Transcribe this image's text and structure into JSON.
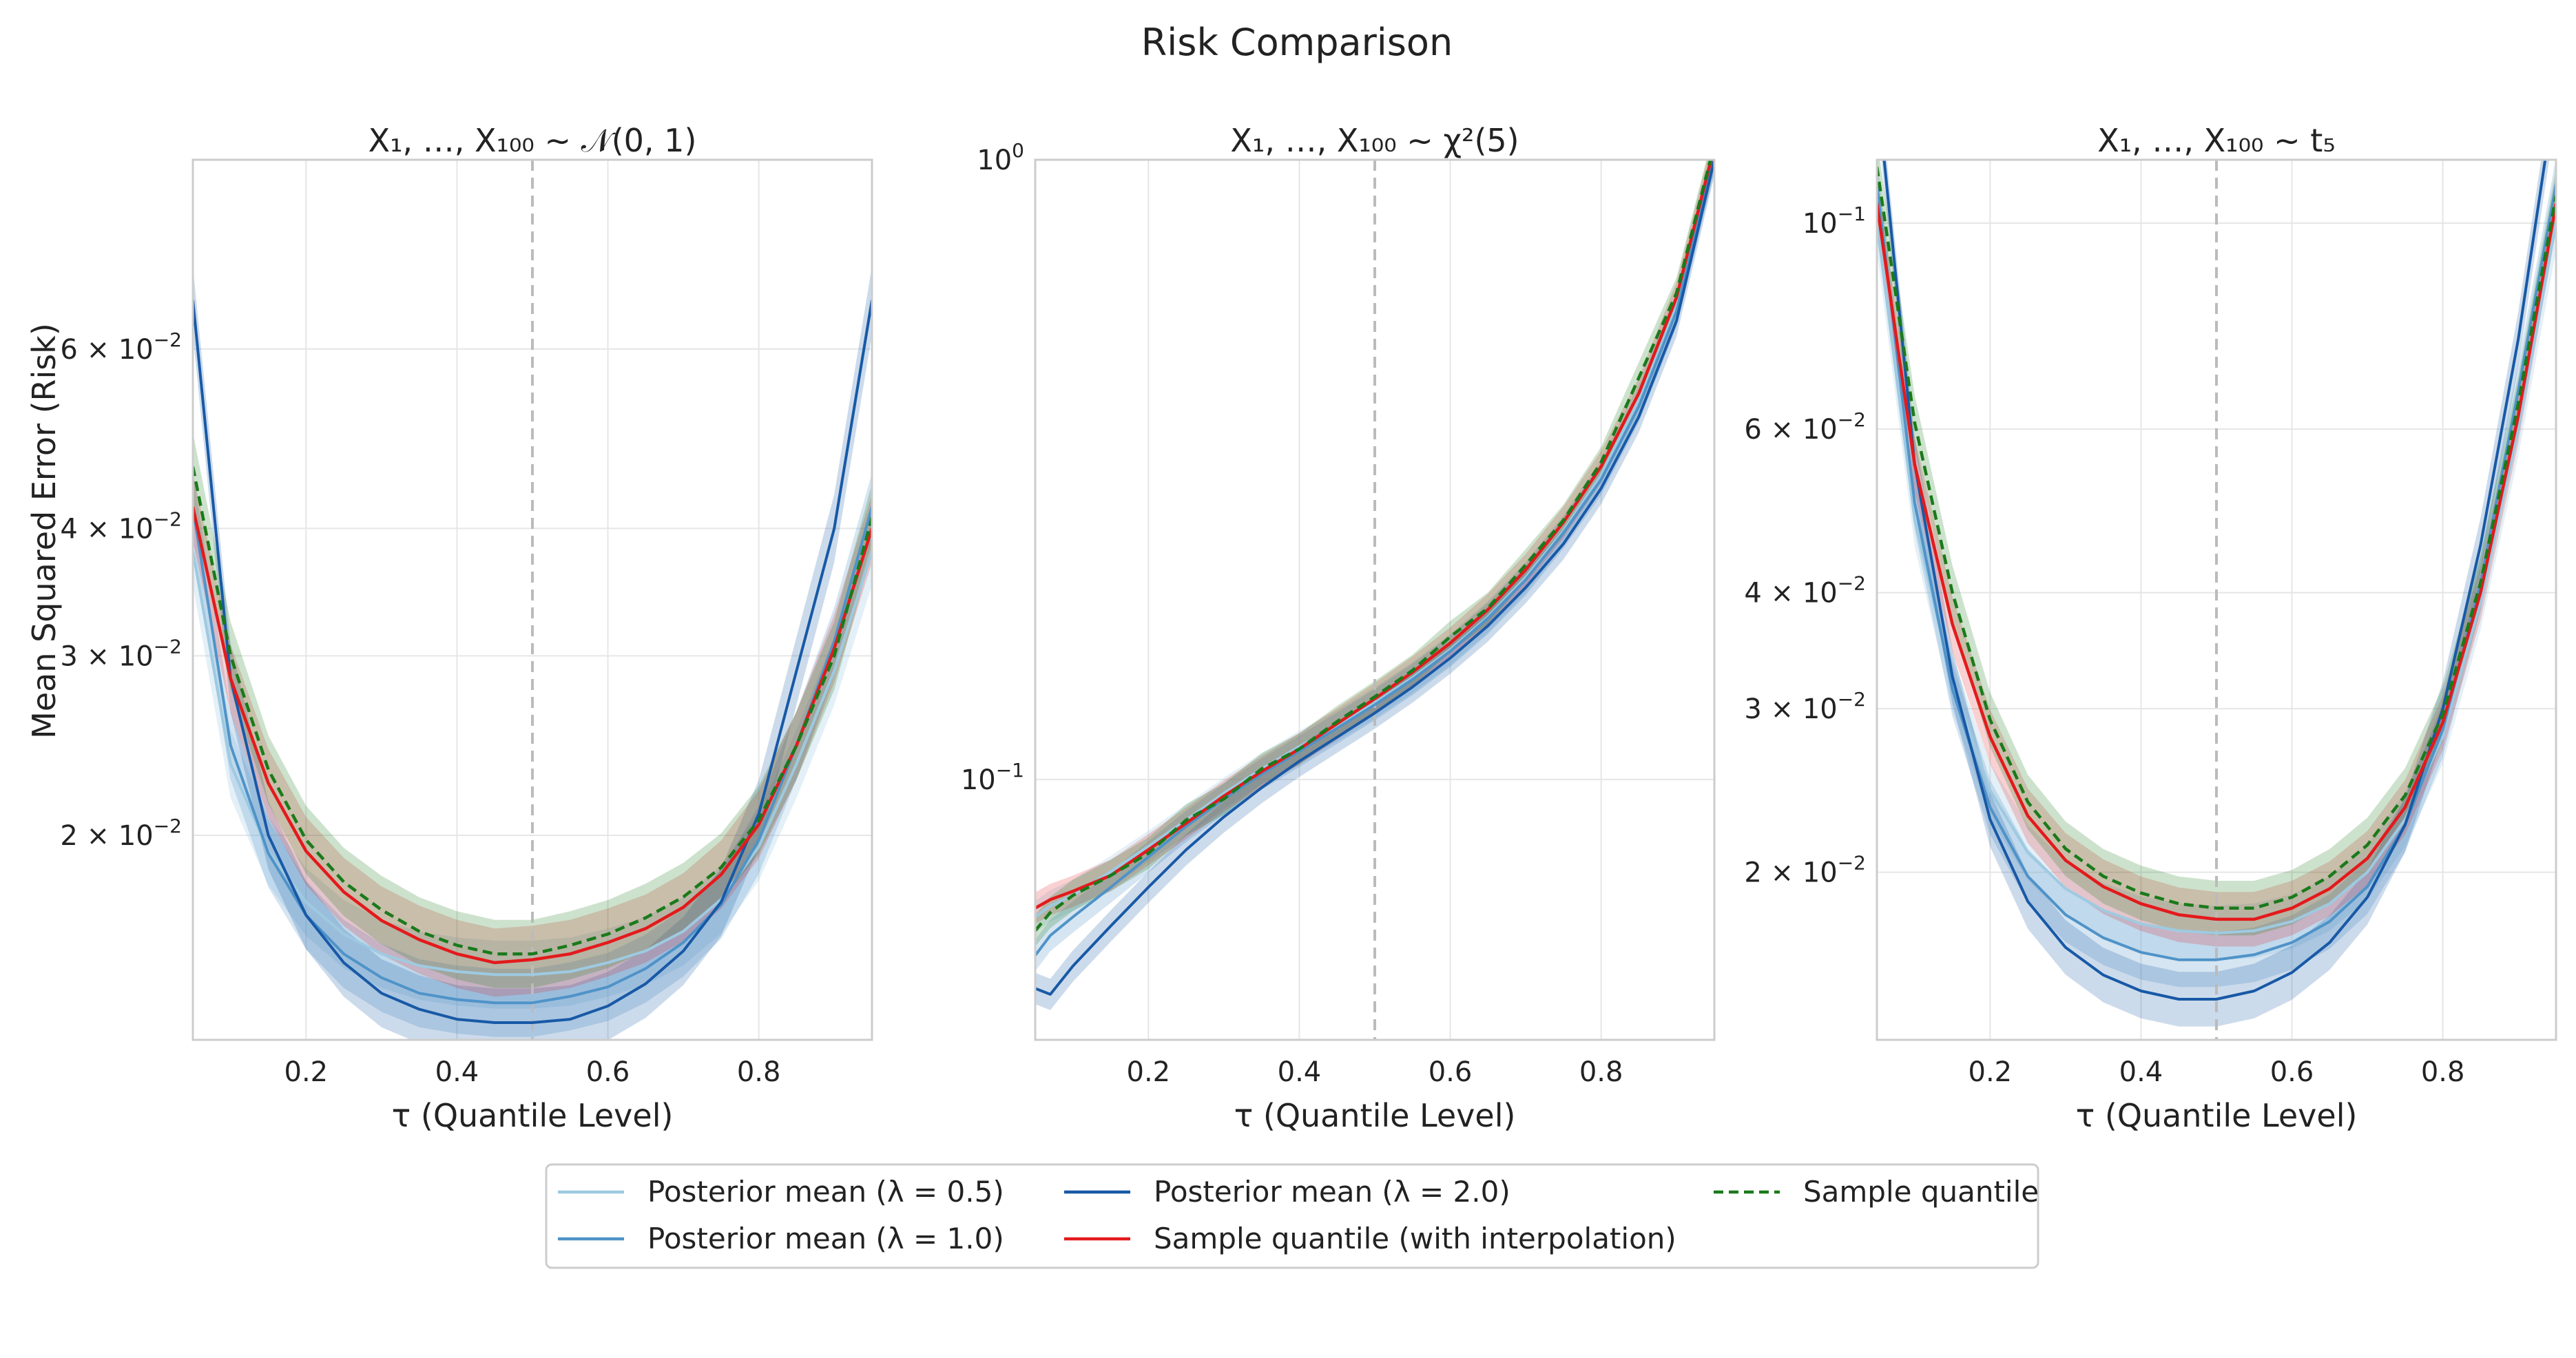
{
  "figure_title": "Risk Comparison",
  "colors": {
    "post_05": "#9ecae1",
    "post_10": "#4f93c8",
    "post_20": "#1859a6",
    "sample_interp": "#e31a1c",
    "sample_q": "#1a7a1a",
    "ref_line": "#bbbbbb"
  },
  "legend": {
    "items": [
      {
        "key": "post_05",
        "label": "Posterior mean (λ = 0.5)",
        "style": "solid"
      },
      {
        "key": "post_10",
        "label": "Posterior mean (λ = 1.0)",
        "style": "solid"
      },
      {
        "key": "post_20",
        "label": "Posterior mean (λ = 2.0)",
        "style": "solid"
      },
      {
        "key": "sample_interp",
        "label": "Sample quantile (with interpolation)",
        "style": "solid"
      },
      {
        "key": "sample_q",
        "label": "Sample quantile",
        "style": "dashed"
      }
    ]
  },
  "chart_data": [
    {
      "type": "line",
      "title": "X₁, …, X₁₀₀ ~ 𝒩(0, 1)",
      "xlabel": "τ (Quantile Level)",
      "ylabel": "Mean Squared Error (Risk)",
      "yscale": "log",
      "xlim": [
        0.05,
        0.95
      ],
      "ylim": [
        0.0126,
        0.092
      ],
      "xticks": [
        0.2,
        0.4,
        0.6,
        0.8
      ],
      "xtick_labels": [
        "0.2",
        "0.4",
        "0.6",
        "0.8"
      ],
      "yticks": [
        {
          "value": 0.02,
          "mant": "2 × 10",
          "exp": "−2"
        },
        {
          "value": 0.03,
          "mant": "3 × 10",
          "exp": "−2"
        },
        {
          "value": 0.04,
          "mant": "4 × 10",
          "exp": "−2"
        },
        {
          "value": 0.06,
          "mant": "6 × 10",
          "exp": "−2"
        }
      ],
      "vline": 0.5,
      "grid": true,
      "band_ratio": 1.08,
      "x": [
        0.05,
        0.1,
        0.15,
        0.2,
        0.25,
        0.3,
        0.35,
        0.4,
        0.45,
        0.5,
        0.55,
        0.6,
        0.65,
        0.7,
        0.75,
        0.8,
        0.85,
        0.9,
        0.95
      ],
      "series": [
        {
          "key": "post_05",
          "name": "Posterior mean (λ = 0.5)",
          "values": [
            0.038,
            0.0235,
            0.0193,
            0.0172,
            0.016,
            0.0153,
            0.0149,
            0.0147,
            0.0146,
            0.0146,
            0.0147,
            0.015,
            0.0154,
            0.0161,
            0.0173,
            0.0195,
            0.0235,
            0.029,
            0.038
          ]
        },
        {
          "key": "post_10",
          "name": "Posterior mean (λ = 1.0)",
          "values": [
            0.042,
            0.0245,
            0.0192,
            0.0167,
            0.0153,
            0.0145,
            0.014,
            0.0138,
            0.0137,
            0.0137,
            0.0139,
            0.0142,
            0.0148,
            0.0157,
            0.0171,
            0.0198,
            0.0245,
            0.031,
            0.042
          ]
        },
        {
          "key": "post_20",
          "name": "Posterior mean (λ = 2.0)",
          "values": [
            0.067,
            0.0285,
            0.02,
            0.0167,
            0.015,
            0.014,
            0.0135,
            0.0132,
            0.0131,
            0.0131,
            0.0132,
            0.0136,
            0.0143,
            0.0154,
            0.0172,
            0.021,
            0.029,
            0.04,
            0.067
          ]
        },
        {
          "key": "sample_interp",
          "name": "Sample quantile (with interpolation)",
          "values": [
            0.042,
            0.0285,
            0.0225,
            0.0193,
            0.0176,
            0.0165,
            0.0158,
            0.0153,
            0.015,
            0.0151,
            0.0153,
            0.0157,
            0.0162,
            0.017,
            0.0183,
            0.0205,
            0.0245,
            0.0305,
            0.04
          ]
        },
        {
          "key": "sample_q",
          "name": "Sample quantile",
          "values": [
            0.046,
            0.03,
            0.0232,
            0.0198,
            0.018,
            0.0169,
            0.0161,
            0.0156,
            0.0153,
            0.0153,
            0.0156,
            0.016,
            0.0166,
            0.0174,
            0.0186,
            0.0207,
            0.0245,
            0.03,
            0.041
          ]
        }
      ]
    },
    {
      "type": "line",
      "title": "X₁, …, X₁₀₀ ~ χ²(5)",
      "xlabel": "τ (Quantile Level)",
      "ylabel": "",
      "yscale": "log",
      "xlim": [
        0.05,
        0.95
      ],
      "ylim": [
        0.038,
        1.0
      ],
      "xticks": [
        0.2,
        0.4,
        0.6,
        0.8
      ],
      "xtick_labels": [
        "0.2",
        "0.4",
        "0.6",
        "0.8"
      ],
      "yticks": [
        {
          "value": 0.1,
          "mant": "10",
          "exp": "−1"
        },
        {
          "value": 1.0,
          "mant": "10",
          "exp": "0"
        }
      ],
      "vline": 0.5,
      "grid": true,
      "band_ratio": 1.06,
      "x": [
        0.05,
        0.07,
        0.1,
        0.15,
        0.2,
        0.25,
        0.3,
        0.35,
        0.4,
        0.45,
        0.5,
        0.55,
        0.6,
        0.65,
        0.7,
        0.75,
        0.8,
        0.85,
        0.9,
        0.95
      ],
      "series": [
        {
          "key": "post_05",
          "name": "Posterior mean (λ = 0.5)",
          "values": [
            0.06,
            0.0625,
            0.065,
            0.071,
            0.078,
            0.086,
            0.095,
            0.104,
            0.113,
            0.122,
            0.133,
            0.146,
            0.162,
            0.183,
            0.212,
            0.252,
            0.31,
            0.41,
            0.58,
            1.02
          ]
        },
        {
          "key": "post_10",
          "name": "Posterior mean (λ = 1.0)",
          "values": [
            0.052,
            0.056,
            0.06,
            0.067,
            0.075,
            0.084,
            0.093,
            0.102,
            0.111,
            0.121,
            0.132,
            0.145,
            0.161,
            0.182,
            0.21,
            0.25,
            0.305,
            0.4,
            0.57,
            1.01
          ]
        },
        {
          "key": "post_20",
          "name": "Posterior mean (λ = 2.0)",
          "values": [
            0.046,
            0.045,
            0.05,
            0.058,
            0.067,
            0.077,
            0.087,
            0.097,
            0.107,
            0.117,
            0.128,
            0.141,
            0.157,
            0.177,
            0.204,
            0.24,
            0.295,
            0.385,
            0.55,
            1.0
          ]
        },
        {
          "key": "sample_interp",
          "name": "Sample quantile (with interpolation)",
          "values": [
            0.062,
            0.064,
            0.066,
            0.07,
            0.077,
            0.085,
            0.094,
            0.103,
            0.112,
            0.123,
            0.135,
            0.149,
            0.166,
            0.188,
            0.218,
            0.26,
            0.32,
            0.42,
            0.6,
            1.05
          ]
        },
        {
          "key": "sample_q",
          "name": "Sample quantile",
          "values": [
            0.057,
            0.061,
            0.065,
            0.07,
            0.076,
            0.086,
            0.093,
            0.104,
            0.112,
            0.124,
            0.136,
            0.15,
            0.17,
            0.189,
            0.222,
            0.262,
            0.325,
            0.445,
            0.61,
            1.06
          ]
        }
      ]
    },
    {
      "type": "line",
      "title": "X₁, …, X₁₀₀ ~ t₅",
      "xlabel": "τ (Quantile Level)",
      "ylabel": "",
      "yscale": "log",
      "xlim": [
        0.05,
        0.95
      ],
      "ylim": [
        0.0132,
        0.117
      ],
      "xticks": [
        0.2,
        0.4,
        0.6,
        0.8
      ],
      "xtick_labels": [
        "0.2",
        "0.4",
        "0.6",
        "0.8"
      ],
      "yticks": [
        {
          "value": 0.02,
          "mant": "2 × 10",
          "exp": "−2"
        },
        {
          "value": 0.03,
          "mant": "3 × 10",
          "exp": "−2"
        },
        {
          "value": 0.04,
          "mant": "4 × 10",
          "exp": "−2"
        },
        {
          "value": 0.06,
          "mant": "6 × 10",
          "exp": "−2"
        },
        {
          "value": 0.1,
          "mant": "10",
          "exp": "−1"
        }
      ],
      "vline": 0.5,
      "grid": true,
      "band_ratio": 1.07,
      "x": [
        0.05,
        0.1,
        0.15,
        0.2,
        0.25,
        0.3,
        0.35,
        0.4,
        0.45,
        0.5,
        0.55,
        0.6,
        0.65,
        0.7,
        0.75,
        0.8,
        0.85,
        0.9,
        0.95
      ],
      "series": [
        {
          "key": "post_05",
          "name": "Posterior mean (λ = 0.5)",
          "values": [
            0.1,
            0.048,
            0.032,
            0.0245,
            0.021,
            0.0192,
            0.0182,
            0.0176,
            0.0173,
            0.0172,
            0.0173,
            0.0177,
            0.0185,
            0.02,
            0.0228,
            0.028,
            0.039,
            0.06,
            0.1
          ]
        },
        {
          "key": "post_10",
          "name": "Posterior mean (λ = 1.0)",
          "values": [
            0.11,
            0.05,
            0.0315,
            0.0235,
            0.0198,
            0.018,
            0.017,
            0.0164,
            0.0161,
            0.0161,
            0.0163,
            0.0168,
            0.0177,
            0.0193,
            0.0225,
            0.0285,
            0.041,
            0.066,
            0.11
          ]
        },
        {
          "key": "post_20",
          "name": "Posterior mean (λ = 2.0)",
          "values": [
            0.14,
            0.055,
            0.0325,
            0.0228,
            0.0186,
            0.0166,
            0.0155,
            0.0149,
            0.0146,
            0.0146,
            0.0149,
            0.0156,
            0.0168,
            0.0188,
            0.0225,
            0.03,
            0.045,
            0.075,
            0.14
          ]
        },
        {
          "key": "sample_interp",
          "name": "Sample quantile (with interpolation)",
          "values": [
            0.105,
            0.055,
            0.037,
            0.028,
            0.023,
            0.0206,
            0.0193,
            0.0185,
            0.018,
            0.0178,
            0.0178,
            0.0183,
            0.0192,
            0.0207,
            0.0235,
            0.029,
            0.04,
            0.062,
            0.105
          ]
        },
        {
          "key": "sample_q",
          "name": "Sample quantile",
          "values": [
            0.115,
            0.061,
            0.04,
            0.0292,
            0.0238,
            0.0212,
            0.0198,
            0.019,
            0.0185,
            0.0183,
            0.0183,
            0.0188,
            0.0198,
            0.0214,
            0.0242,
            0.0296,
            0.041,
            0.064,
            0.107
          ]
        }
      ]
    }
  ]
}
